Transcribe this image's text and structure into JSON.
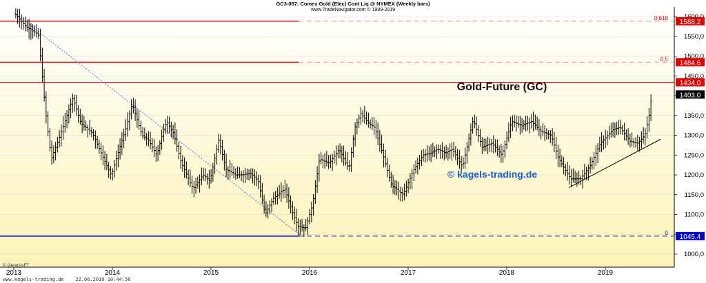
{
  "header": {
    "line1": "GC3-057:  Comex Gold (Elec) Cont Liq @ NYMEX  (Weekly bars)",
    "line2": "www.TradeNavigator.com © 1999-2019"
  },
  "footer": {
    "credit": "© GenesisFT",
    "website_date": "www.kagels-trading.de    22.06.2019 10:44:56"
  },
  "annotations": {
    "title": "Gold-Future (GC)",
    "watermark": "© kagels-trading.de"
  },
  "colors": {
    "bars": "#000000",
    "resistance": "#e00000",
    "support": "#0000cc",
    "fib_dash": "#ff8080",
    "watermark": "#1a5fd0",
    "bg_top": "#ffffff",
    "bg_bottom": "#fdf3b8"
  },
  "chart_data": {
    "type": "ohlc",
    "interval": "weekly",
    "x_start": 2013.0,
    "x_end": 2019.66,
    "ylim": [
      950,
      1620
    ],
    "x_ticks": [
      "2013",
      "2014",
      "2015",
      "2016",
      "2017",
      "2018",
      "2019"
    ],
    "y_ticks": [
      "1000,0",
      "1050,0",
      "1100,0",
      "1150,0",
      "1200,0",
      "1250,0",
      "1300,0",
      "1350,0",
      "1400,0",
      "1450,0",
      "1500,0",
      "1550,0",
      "1600,0"
    ],
    "horizontal_levels": [
      {
        "value": 1588.2,
        "label": "1588,2",
        "fib": "0,618",
        "style": "resistance"
      },
      {
        "value": 1484.6,
        "label": "1484,6",
        "fib": "0,5",
        "style": "resistance"
      },
      {
        "value": 1434.0,
        "label": "1434,0",
        "style": "resistance_full"
      },
      {
        "value": 1045.4,
        "label": "1045,4",
        "fib": "0",
        "style": "support"
      }
    ],
    "last_price": {
      "value": 1403.0,
      "label": "1403,0"
    },
    "trendlines": [
      {
        "from": [
          2013.0,
          1610
        ],
        "to": [
          2015.92,
          1045
        ],
        "style": "dashed-blue"
      },
      {
        "from": [
          2018.63,
          1168
        ],
        "to": [
          2019.56,
          1290
        ],
        "style": "solid-black"
      }
    ],
    "price_anchors": [
      [
        2013.02,
        1605
      ],
      [
        2013.12,
        1575
      ],
      [
        2013.25,
        1555
      ],
      [
        2013.32,
        1365
      ],
      [
        2013.38,
        1240
      ],
      [
        2013.47,
        1300
      ],
      [
        2013.6,
        1395
      ],
      [
        2013.68,
        1330
      ],
      [
        2013.8,
        1305
      ],
      [
        2013.93,
        1230
      ],
      [
        2013.99,
        1200
      ],
      [
        2014.05,
        1250
      ],
      [
        2014.14,
        1320
      ],
      [
        2014.2,
        1380
      ],
      [
        2014.3,
        1300
      ],
      [
        2014.36,
        1290
      ],
      [
        2014.45,
        1250
      ],
      [
        2014.52,
        1315
      ],
      [
        2014.55,
        1335
      ],
      [
        2014.62,
        1305
      ],
      [
        2014.7,
        1230
      ],
      [
        2014.82,
        1165
      ],
      [
        2014.92,
        1200
      ],
      [
        2014.99,
        1185
      ],
      [
        2015.08,
        1290
      ],
      [
        2015.15,
        1215
      ],
      [
        2015.25,
        1200
      ],
      [
        2015.32,
        1200
      ],
      [
        2015.4,
        1205
      ],
      [
        2015.48,
        1185
      ],
      [
        2015.55,
        1100
      ],
      [
        2015.63,
        1140
      ],
      [
        2015.75,
        1165
      ],
      [
        2015.82,
        1110
      ],
      [
        2015.88,
        1070
      ],
      [
        2015.96,
        1065
      ],
      [
        2016.03,
        1125
      ],
      [
        2016.1,
        1240
      ],
      [
        2016.2,
        1230
      ],
      [
        2016.3,
        1265
      ],
      [
        2016.4,
        1215
      ],
      [
        2016.46,
        1320
      ],
      [
        2016.52,
        1355
      ],
      [
        2016.6,
        1330
      ],
      [
        2016.66,
        1320
      ],
      [
        2016.74,
        1255
      ],
      [
        2016.83,
        1175
      ],
      [
        2016.95,
        1150
      ],
      [
        2017.05,
        1210
      ],
      [
        2017.15,
        1250
      ],
      [
        2017.23,
        1255
      ],
      [
        2017.3,
        1265
      ],
      [
        2017.38,
        1255
      ],
      [
        2017.45,
        1265
      ],
      [
        2017.55,
        1220
      ],
      [
        2017.66,
        1340
      ],
      [
        2017.75,
        1270
      ],
      [
        2017.85,
        1280
      ],
      [
        2017.95,
        1250
      ],
      [
        2018.05,
        1335
      ],
      [
        2018.15,
        1325
      ],
      [
        2018.25,
        1335
      ],
      [
        2018.35,
        1310
      ],
      [
        2018.45,
        1300
      ],
      [
        2018.52,
        1245
      ],
      [
        2018.6,
        1210
      ],
      [
        2018.65,
        1190
      ],
      [
        2018.75,
        1190
      ],
      [
        2018.85,
        1225
      ],
      [
        2018.95,
        1280
      ],
      [
        2019.08,
        1315
      ],
      [
        2019.15,
        1320
      ],
      [
        2019.25,
        1285
      ],
      [
        2019.33,
        1280
      ],
      [
        2019.4,
        1300
      ],
      [
        2019.44,
        1345
      ],
      [
        2019.47,
        1400
      ]
    ]
  }
}
